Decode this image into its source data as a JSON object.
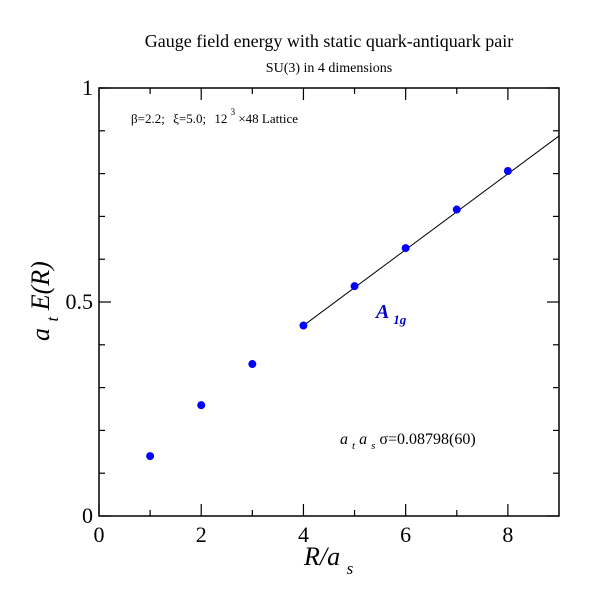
{
  "chart_data": {
    "type": "scatter",
    "title": "Gauge field energy with static quark-antiquark pair",
    "subtitle": "SU(3) in 4 dimensions",
    "xlabel": {
      "main": "R/a",
      "sub": "s"
    },
    "ylabel": {
      "a": "a",
      "t": "t",
      "E": "E(R)"
    },
    "xlim": [
      0,
      9
    ],
    "ylim": [
      0,
      1
    ],
    "x_ticks": [
      0,
      2,
      4,
      6,
      8
    ],
    "x_tick_labels": [
      "0",
      "2",
      "4",
      "6",
      "8"
    ],
    "y_ticks": [
      0,
      0.5,
      1
    ],
    "y_tick_labels": [
      "0",
      "0.5",
      "1"
    ],
    "grid": false,
    "annotation": {
      "beta": "β=2.2;",
      "xi": "ξ=5.0;",
      "lattice_base": "12",
      "lattice_exp": "3",
      "lattice_rest": "×48 Lattice"
    },
    "series": [
      {
        "name": "A1g",
        "color": "#0000ff",
        "points": [
          {
            "x": 1,
            "y": 0.14
          },
          {
            "x": 2,
            "y": 0.259
          },
          {
            "x": 3,
            "y": 0.355
          },
          {
            "x": 4,
            "y": 0.445
          },
          {
            "x": 5,
            "y": 0.537
          },
          {
            "x": 6,
            "y": 0.626
          },
          {
            "x": 7,
            "y": 0.716
          },
          {
            "x": 8,
            "y": 0.806
          }
        ]
      }
    ],
    "fit_line": {
      "x_start": 4,
      "y_start": 0.445,
      "x_end": 9,
      "y_end": 0.888,
      "color": "#000000"
    },
    "series_label": {
      "main": "A",
      "sub": "1g",
      "color": "#0000cc"
    },
    "fit_result": {
      "a": "a",
      "t": "t",
      "a2": "a",
      "s": "s",
      "value": "σ=0.08798(60)"
    }
  }
}
